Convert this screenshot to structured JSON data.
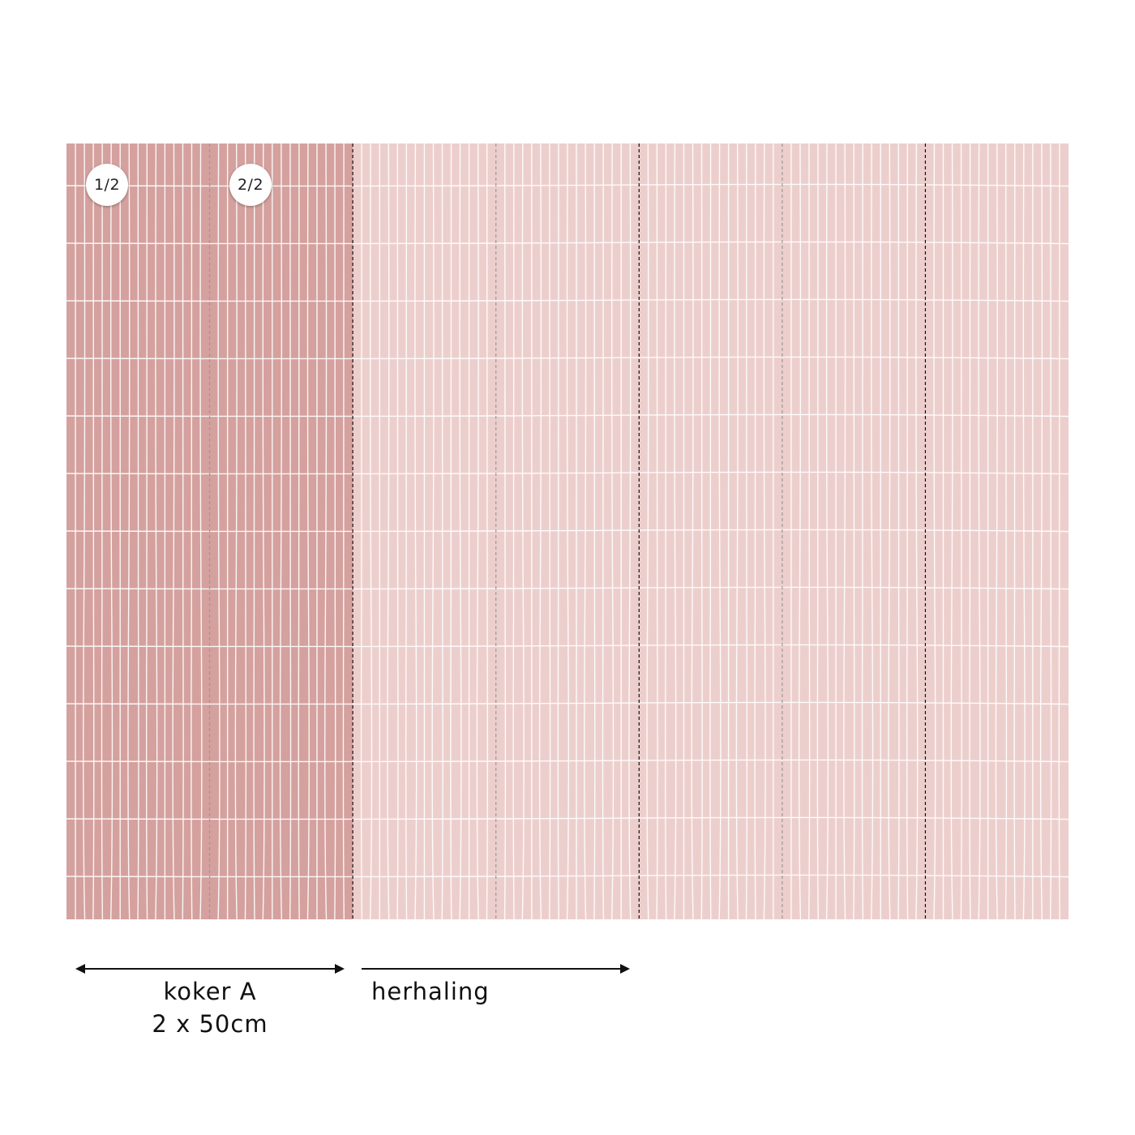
{
  "panels": {
    "count": 7,
    "highlighted_count": 2,
    "highlight_color": "#d4a19e",
    "base_color": "#eccfcd",
    "grid_line_color": "#ffffff",
    "seam_color_inner": "#9a9a9a",
    "seam_color_outer": "#111111"
  },
  "badges": [
    {
      "label": "1/2"
    },
    {
      "label": "2/2"
    }
  ],
  "labels": {
    "roll_name": "koker A",
    "roll_size": "2 x 50cm",
    "repeat": "herhaling"
  },
  "icons": {
    "roll_arrow": "double-headed-arrow",
    "repeat_arrow": "right-arrow"
  }
}
